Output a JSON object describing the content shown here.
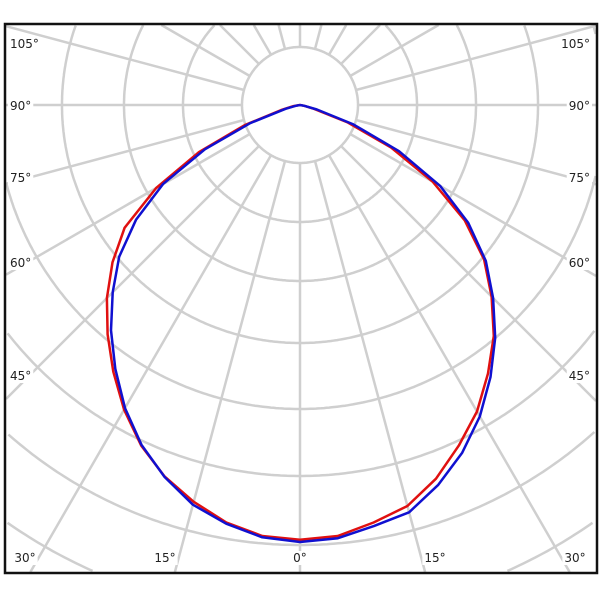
{
  "chart_data": {
    "type": "polar-line",
    "grid": true,
    "angle_unit": "degrees",
    "angle_tick_labels": {
      "left": [
        "105°",
        "90°",
        "75°",
        "60°",
        "45°"
      ],
      "right": [
        "105°",
        "90°",
        "75°",
        "60°",
        "45°"
      ],
      "bottom": [
        "30°",
        "15°",
        "0°",
        "15°",
        "30°"
      ]
    },
    "angles": [
      0,
      5,
      10,
      15,
      20,
      25,
      30,
      35,
      40,
      45,
      50,
      55,
      60,
      65,
      70,
      75,
      80,
      90
    ],
    "radial_max": 100,
    "series": [
      {
        "color": "#e01010",
        "left": [
          99.5,
          99,
          97,
          94,
          90.5,
          86,
          80.5,
          74.5,
          68.5,
          62.5,
          56,
          49,
          38,
          25.5,
          13.5,
          4.5,
          1.5,
          0
        ],
        "right": [
          99.5,
          99,
          97,
          95,
          91,
          86,
          81,
          75,
          69,
          62,
          55,
          46,
          35,
          23,
          11.5,
          3,
          1,
          0
        ]
      },
      {
        "color": "#1010d0",
        "left": [
          100,
          99.3,
          97.3,
          94.7,
          90.6,
          85.8,
          80.1,
          73.7,
          67.3,
          60.6,
          54,
          45.8,
          36.2,
          24,
          12.1,
          3.4,
          1,
          0
        ],
        "right": [
          100,
          99.5,
          97.8,
          96.5,
          92.5,
          87.8,
          82.3,
          76,
          69.5,
          62.5,
          55.5,
          47,
          37,
          25,
          13,
          4,
          1,
          0
        ]
      }
    ]
  }
}
